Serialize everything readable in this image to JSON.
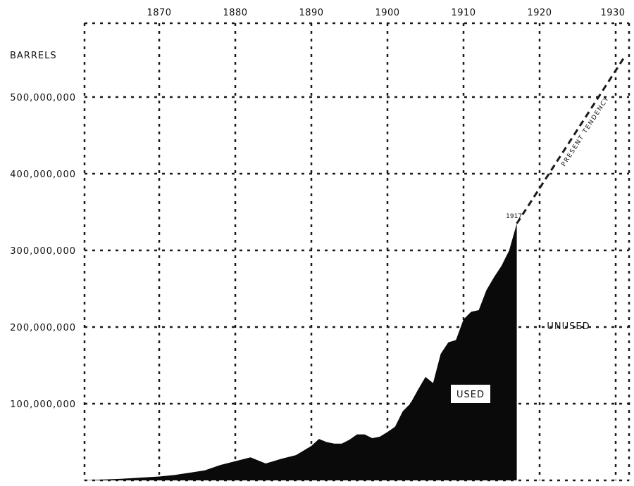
{
  "chart_data": {
    "type": "area",
    "ylabel": "BARRELS",
    "x_ticks": [
      "1870",
      "1880",
      "1890",
      "1900",
      "1910",
      "1920",
      "1930"
    ],
    "y_ticks": [
      "100,000,000",
      "200,000,000",
      "300,000,000",
      "400,000,000",
      "500,000,000"
    ],
    "xlim": [
      1860,
      1932
    ],
    "ylim": [
      0,
      600000000
    ],
    "grid": true,
    "series": [
      {
        "name": "USED",
        "x": [
          1860,
          1865,
          1870,
          1872,
          1874,
          1876,
          1878,
          1880,
          1882,
          1884,
          1886,
          1888,
          1890,
          1891,
          1892,
          1893,
          1894,
          1895,
          1896,
          1897,
          1898,
          1899,
          1900,
          1901,
          1902,
          1903,
          1904,
          1905,
          1906,
          1907,
          1908,
          1909,
          1910,
          1911,
          1912,
          1913,
          1914,
          1915,
          1916,
          1917
        ],
        "values": [
          0,
          2000000,
          5000000,
          7000000,
          10000000,
          13000000,
          20000000,
          25000000,
          30000000,
          22000000,
          28000000,
          33000000,
          45000000,
          54000000,
          50000000,
          48000000,
          48000000,
          53000000,
          60000000,
          60000000,
          55000000,
          57000000,
          63000000,
          70000000,
          90000000,
          100000000,
          118000000,
          135000000,
          127000000,
          165000000,
          180000000,
          183000000,
          210000000,
          220000000,
          222000000,
          248000000,
          265000000,
          280000000,
          300000000,
          335000000
        ]
      },
      {
        "name": "PRESENT TENDENCY",
        "x": [
          1917,
          1931
        ],
        "values": [
          335000000,
          550000000
        ]
      }
    ],
    "annotations": {
      "year_marker": "1917",
      "used_label": "USED",
      "unused_label": "UNUSED",
      "tendency_label": "PRESENT TENDENCY"
    }
  }
}
